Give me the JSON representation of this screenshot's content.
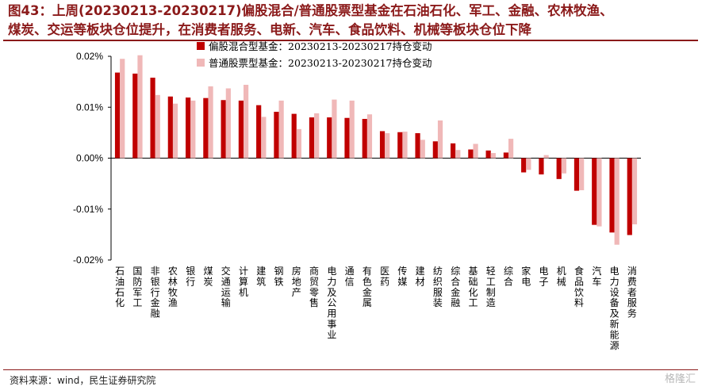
{
  "title": {
    "line1": "图43：上周(20230213-20230217)偏股混合/普通股票型基金在石油石化、军工、金融、农林牧渔、",
    "line2": "煤炭、交运等板块仓位提升，在消费者服务、电新、汽车、食品饮料、机械等板块仓位下降"
  },
  "source": "资料来源：wind，民生证券研究院",
  "watermark": "格隆汇",
  "colors": {
    "series1": "#c00000",
    "series2": "#f0b8b8",
    "title": "#8b1a1a"
  },
  "chart_data": {
    "type": "bar",
    "categories": [
      "石油石化",
      "国防军工",
      "非银行金融",
      "农林牧渔",
      "银行",
      "煤炭",
      "交通运输",
      "计算机",
      "建筑",
      "钢铁",
      "房地产",
      "商贸零售",
      "电力及公用事业",
      "通信",
      "有色金属",
      "医药",
      "传媒",
      "建材",
      "纺织服装",
      "综合金融",
      "基础化工",
      "轻工制造",
      "综合",
      "家电",
      "电子",
      "机械",
      "食品饮料",
      "汽车",
      "电力设备及新能源",
      "消费者服务"
    ],
    "series": [
      {
        "name": "偏股混合型基金：20230213-20230217持仓变动",
        "values": [
          0.0168,
          0.0166,
          0.0158,
          0.0121,
          0.0119,
          0.0118,
          0.0114,
          0.0113,
          0.0104,
          0.0091,
          0.0087,
          0.008,
          0.008,
          0.0079,
          0.0077,
          0.0053,
          0.0051,
          0.0049,
          0.0033,
          0.0029,
          0.0017,
          0.0015,
          0.0011,
          -0.0028,
          -0.0032,
          -0.0041,
          -0.0064,
          -0.0131,
          -0.0146,
          -0.0151
        ]
      },
      {
        "name": "普通股票型基金：20230213-20230217持仓变动",
        "values": [
          0.0195,
          0.0202,
          0.0124,
          0.0107,
          0.0113,
          0.0141,
          0.0137,
          0.0144,
          0.0081,
          0.0113,
          0.0057,
          0.0088,
          0.0115,
          0.0113,
          0.0086,
          0.0049,
          0.0052,
          0.0036,
          0.0074,
          0.0016,
          0.0028,
          0.001,
          0.0038,
          -0.0023,
          0.0006,
          -0.003,
          -0.0063,
          -0.0134,
          -0.017,
          -0.013
        ]
      }
    ],
    "yticks": [
      "0.02%",
      "0.01%",
      "0.00%",
      "-0.01%",
      "-0.02%"
    ],
    "ylim": [
      -0.02,
      0.02
    ],
    "legend_position": "top-center"
  }
}
